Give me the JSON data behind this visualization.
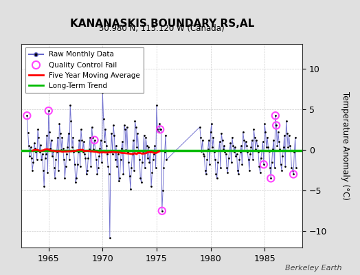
{
  "title": "KANANASKIS BOUNDARY RS,AL",
  "subtitle": "50.980 N, 115.120 W (Canada)",
  "ylabel": "Temperature Anomaly (°C)",
  "watermark": "Berkeley Earth",
  "ylim": [
    -12,
    13
  ],
  "yticks": [
    -10,
    -5,
    0,
    5,
    10
  ],
  "xlim": [
    1962.5,
    1988.5
  ],
  "xticks": [
    1965,
    1970,
    1975,
    1980,
    1985
  ],
  "fig_bg": "#e0e0e0",
  "plot_bg": "#ffffff",
  "raw_color": "#6666cc",
  "raw_dot_color": "#000000",
  "ma_color": "#ff0000",
  "trend_color": "#00bb00",
  "qc_color": "#ff44ff",
  "raw_monthly": [
    [
      1963.0,
      4.2
    ],
    [
      1963.083,
      2.1
    ],
    [
      1963.167,
      0.5
    ],
    [
      1963.25,
      -0.8
    ],
    [
      1963.333,
      0.3
    ],
    [
      1963.417,
      -1.0
    ],
    [
      1963.5,
      -2.5
    ],
    [
      1963.583,
      -1.5
    ],
    [
      1963.667,
      0.8
    ],
    [
      1963.75,
      0.2
    ],
    [
      1963.833,
      -0.3
    ],
    [
      1963.917,
      -1.2
    ],
    [
      1964.0,
      2.5
    ],
    [
      1964.083,
      1.5
    ],
    [
      1964.167,
      -0.3
    ],
    [
      1964.25,
      0.6
    ],
    [
      1964.333,
      -1.2
    ],
    [
      1964.417,
      -0.5
    ],
    [
      1964.5,
      -2.5
    ],
    [
      1964.583,
      -4.5
    ],
    [
      1964.667,
      -1.0
    ],
    [
      1964.75,
      -0.5
    ],
    [
      1964.833,
      1.8
    ],
    [
      1964.917,
      -2.8
    ],
    [
      1965.0,
      4.8
    ],
    [
      1965.083,
      2.2
    ],
    [
      1965.167,
      0.2
    ],
    [
      1965.25,
      1.2
    ],
    [
      1965.333,
      -0.8
    ],
    [
      1965.417,
      -0.2
    ],
    [
      1965.5,
      -2.2
    ],
    [
      1965.583,
      -3.5
    ],
    [
      1965.667,
      -1.2
    ],
    [
      1965.75,
      -0.3
    ],
    [
      1965.833,
      1.5
    ],
    [
      1965.917,
      -2.5
    ],
    [
      1966.0,
      3.2
    ],
    [
      1966.083,
      2.0
    ],
    [
      1966.167,
      0.0
    ],
    [
      1966.25,
      1.5
    ],
    [
      1966.333,
      0.2
    ],
    [
      1966.417,
      -1.2
    ],
    [
      1966.5,
      -3.5
    ],
    [
      1966.583,
      -2.0
    ],
    [
      1966.667,
      -0.5
    ],
    [
      1966.75,
      0.3
    ],
    [
      1966.833,
      2.0
    ],
    [
      1966.917,
      -1.2
    ],
    [
      1967.0,
      5.5
    ],
    [
      1967.083,
      3.5
    ],
    [
      1967.167,
      0.3
    ],
    [
      1967.25,
      1.5
    ],
    [
      1967.333,
      -0.3
    ],
    [
      1967.417,
      -1.8
    ],
    [
      1967.5,
      -4.0
    ],
    [
      1967.583,
      -3.5
    ],
    [
      1967.667,
      -1.8
    ],
    [
      1967.75,
      -0.3
    ],
    [
      1967.833,
      1.2
    ],
    [
      1967.917,
      -2.0
    ],
    [
      1968.0,
      2.5
    ],
    [
      1968.083,
      1.2
    ],
    [
      1968.167,
      -0.3
    ],
    [
      1968.25,
      1.0
    ],
    [
      1968.333,
      -0.5
    ],
    [
      1968.417,
      -1.0
    ],
    [
      1968.5,
      -3.0
    ],
    [
      1968.583,
      -2.5
    ],
    [
      1968.667,
      -1.0
    ],
    [
      1968.75,
      0.1
    ],
    [
      1968.833,
      1.5
    ],
    [
      1968.917,
      -2.0
    ],
    [
      1969.0,
      2.8
    ],
    [
      1969.083,
      1.5
    ],
    [
      1969.167,
      0.1
    ],
    [
      1969.25,
      1.2
    ],
    [
      1969.333,
      -0.2
    ],
    [
      1969.417,
      -1.2
    ],
    [
      1969.5,
      -3.0
    ],
    [
      1969.583,
      -2.2
    ],
    [
      1969.667,
      -0.8
    ],
    [
      1969.75,
      0.2
    ],
    [
      1969.833,
      1.2
    ],
    [
      1969.917,
      -1.5
    ],
    [
      1970.0,
      7.0
    ],
    [
      1970.083,
      3.8
    ],
    [
      1970.167,
      1.0
    ],
    [
      1970.25,
      2.5
    ],
    [
      1970.333,
      0.5
    ],
    [
      1970.417,
      -0.5
    ],
    [
      1970.5,
      -2.0
    ],
    [
      1970.583,
      -3.0
    ],
    [
      1970.667,
      -10.8
    ],
    [
      1970.75,
      -0.3
    ],
    [
      1970.833,
      2.0
    ],
    [
      1970.917,
      -0.5
    ],
    [
      1971.0,
      3.0
    ],
    [
      1971.083,
      1.8
    ],
    [
      1971.167,
      -1.2
    ],
    [
      1971.25,
      0.5
    ],
    [
      1971.333,
      -2.0
    ],
    [
      1971.417,
      -0.5
    ],
    [
      1971.5,
      -3.8
    ],
    [
      1971.583,
      -3.5
    ],
    [
      1971.667,
      -1.2
    ],
    [
      1971.75,
      0.2
    ],
    [
      1971.833,
      1.0
    ],
    [
      1971.917,
      -3.0
    ],
    [
      1972.0,
      3.0
    ],
    [
      1972.083,
      2.5
    ],
    [
      1972.167,
      0.0
    ],
    [
      1972.25,
      2.8
    ],
    [
      1972.333,
      -0.3
    ],
    [
      1972.417,
      -1.5
    ],
    [
      1972.5,
      -3.2
    ],
    [
      1972.583,
      -4.8
    ],
    [
      1972.667,
      -2.2
    ],
    [
      1972.75,
      -0.5
    ],
    [
      1972.833,
      1.2
    ],
    [
      1972.917,
      -2.5
    ],
    [
      1973.0,
      3.5
    ],
    [
      1973.083,
      2.8
    ],
    [
      1973.167,
      0.3
    ],
    [
      1973.25,
      2.0
    ],
    [
      1973.333,
      -0.2
    ],
    [
      1973.417,
      -1.2
    ],
    [
      1973.5,
      -3.5
    ],
    [
      1973.583,
      -4.0
    ],
    [
      1973.667,
      -1.5
    ],
    [
      1973.75,
      -0.2
    ],
    [
      1973.833,
      1.8
    ],
    [
      1973.917,
      -2.2
    ],
    [
      1974.0,
      1.5
    ],
    [
      1974.083,
      0.5
    ],
    [
      1974.167,
      -1.0
    ],
    [
      1974.25,
      0.3
    ],
    [
      1974.333,
      -1.5
    ],
    [
      1974.417,
      -0.3
    ],
    [
      1974.5,
      -4.5
    ],
    [
      1974.583,
      -2.8
    ],
    [
      1974.667,
      -1.2
    ],
    [
      1974.75,
      -0.5
    ],
    [
      1974.833,
      0.5
    ],
    [
      1974.917,
      -2.2
    ],
    [
      1975.0,
      5.5
    ],
    [
      1975.083,
      2.5
    ],
    [
      1975.167,
      2.2
    ],
    [
      1975.25,
      3.2
    ],
    [
      1975.333,
      2.5
    ],
    [
      1975.417,
      2.5
    ],
    [
      1975.5,
      -7.5
    ],
    [
      1975.583,
      -5.0
    ],
    [
      1975.667,
      -2.2
    ],
    [
      1975.75,
      -0.3
    ],
    [
      1975.833,
      1.8
    ],
    [
      1975.917,
      -1.2
    ],
    [
      1979.0,
      2.8
    ],
    [
      1979.083,
      1.5
    ],
    [
      1979.167,
      -0.2
    ],
    [
      1979.25,
      1.2
    ],
    [
      1979.333,
      -0.5
    ],
    [
      1979.417,
      -0.8
    ],
    [
      1979.5,
      -2.5
    ],
    [
      1979.583,
      -3.0
    ],
    [
      1979.667,
      -1.2
    ],
    [
      1979.75,
      0.1
    ],
    [
      1979.833,
      1.2
    ],
    [
      1979.917,
      -1.8
    ],
    [
      1980.0,
      2.2
    ],
    [
      1980.083,
      3.2
    ],
    [
      1980.167,
      0.3
    ],
    [
      1980.25,
      1.5
    ],
    [
      1980.333,
      -0.3
    ],
    [
      1980.417,
      -1.2
    ],
    [
      1980.5,
      -3.0
    ],
    [
      1980.583,
      -3.5
    ],
    [
      1980.667,
      -1.5
    ],
    [
      1980.75,
      -0.1
    ],
    [
      1980.833,
      1.0
    ],
    [
      1980.917,
      -2.2
    ],
    [
      1981.0,
      2.0
    ],
    [
      1981.083,
      1.2
    ],
    [
      1981.167,
      0.1
    ],
    [
      1981.25,
      0.5
    ],
    [
      1981.333,
      -0.3
    ],
    [
      1981.417,
      -0.5
    ],
    [
      1981.5,
      -2.2
    ],
    [
      1981.583,
      -2.8
    ],
    [
      1981.667,
      -1.0
    ],
    [
      1981.75,
      -0.1
    ],
    [
      1981.833,
      0.8
    ],
    [
      1981.917,
      -1.5
    ],
    [
      1982.0,
      1.5
    ],
    [
      1982.083,
      0.5
    ],
    [
      1982.167,
      -0.3
    ],
    [
      1982.25,
      0.3
    ],
    [
      1982.333,
      -0.8
    ],
    [
      1982.417,
      -0.5
    ],
    [
      1982.5,
      -2.5
    ],
    [
      1982.583,
      -3.0
    ],
    [
      1982.667,
      -1.2
    ],
    [
      1982.75,
      -0.3
    ],
    [
      1982.833,
      0.5
    ],
    [
      1982.917,
      -1.8
    ],
    [
      1983.0,
      2.2
    ],
    [
      1983.083,
      1.2
    ],
    [
      1983.167,
      -0.1
    ],
    [
      1983.25,
      1.0
    ],
    [
      1983.333,
      0.5
    ],
    [
      1983.417,
      -0.3
    ],
    [
      1983.5,
      -1.2
    ],
    [
      1983.583,
      -2.5
    ],
    [
      1983.667,
      -0.5
    ],
    [
      1983.75,
      0.3
    ],
    [
      1983.833,
      1.2
    ],
    [
      1983.917,
      -1.2
    ],
    [
      1984.0,
      2.5
    ],
    [
      1984.083,
      1.5
    ],
    [
      1984.167,
      0.1
    ],
    [
      1984.25,
      1.2
    ],
    [
      1984.333,
      0.5
    ],
    [
      1984.417,
      -0.3
    ],
    [
      1984.5,
      -2.0
    ],
    [
      1984.583,
      -2.8
    ],
    [
      1984.667,
      -1.0
    ],
    [
      1984.75,
      -0.1
    ],
    [
      1984.833,
      1.0
    ],
    [
      1984.917,
      -1.8
    ],
    [
      1985.0,
      3.2
    ],
    [
      1985.083,
      2.2
    ],
    [
      1985.167,
      0.3
    ],
    [
      1985.25,
      1.5
    ],
    [
      1985.333,
      0.3
    ],
    [
      1985.417,
      -0.2
    ],
    [
      1985.5,
      -2.2
    ],
    [
      1985.583,
      -3.5
    ],
    [
      1985.667,
      -1.5
    ],
    [
      1985.75,
      0.1
    ],
    [
      1985.833,
      1.2
    ],
    [
      1985.917,
      -2.2
    ],
    [
      1986.0,
      4.2
    ],
    [
      1986.083,
      3.0
    ],
    [
      1986.167,
      0.5
    ],
    [
      1986.25,
      2.2
    ],
    [
      1986.333,
      1.0
    ],
    [
      1986.417,
      0.1
    ],
    [
      1986.5,
      -1.8
    ],
    [
      1986.583,
      -2.5
    ],
    [
      1986.667,
      -0.8
    ],
    [
      1986.75,
      0.3
    ],
    [
      1986.833,
      1.8
    ],
    [
      1986.917,
      -2.0
    ],
    [
      1987.0,
      3.5
    ],
    [
      1987.083,
      2.0
    ],
    [
      1987.167,
      0.3
    ],
    [
      1987.25,
      1.8
    ],
    [
      1987.333,
      0.5
    ],
    [
      1987.417,
      -0.1
    ],
    [
      1987.5,
      -2.2
    ],
    [
      1987.583,
      -2.5
    ],
    [
      1987.667,
      -3.0
    ],
    [
      1987.75,
      -0.3
    ],
    [
      1987.833,
      1.5
    ],
    [
      1987.917,
      -2.2
    ]
  ],
  "qc_fail_times": [
    1963.0,
    1965.0,
    1969.25,
    1975.333,
    1975.5,
    1984.917,
    1985.583,
    1986.0,
    1986.083,
    1987.667
  ]
}
